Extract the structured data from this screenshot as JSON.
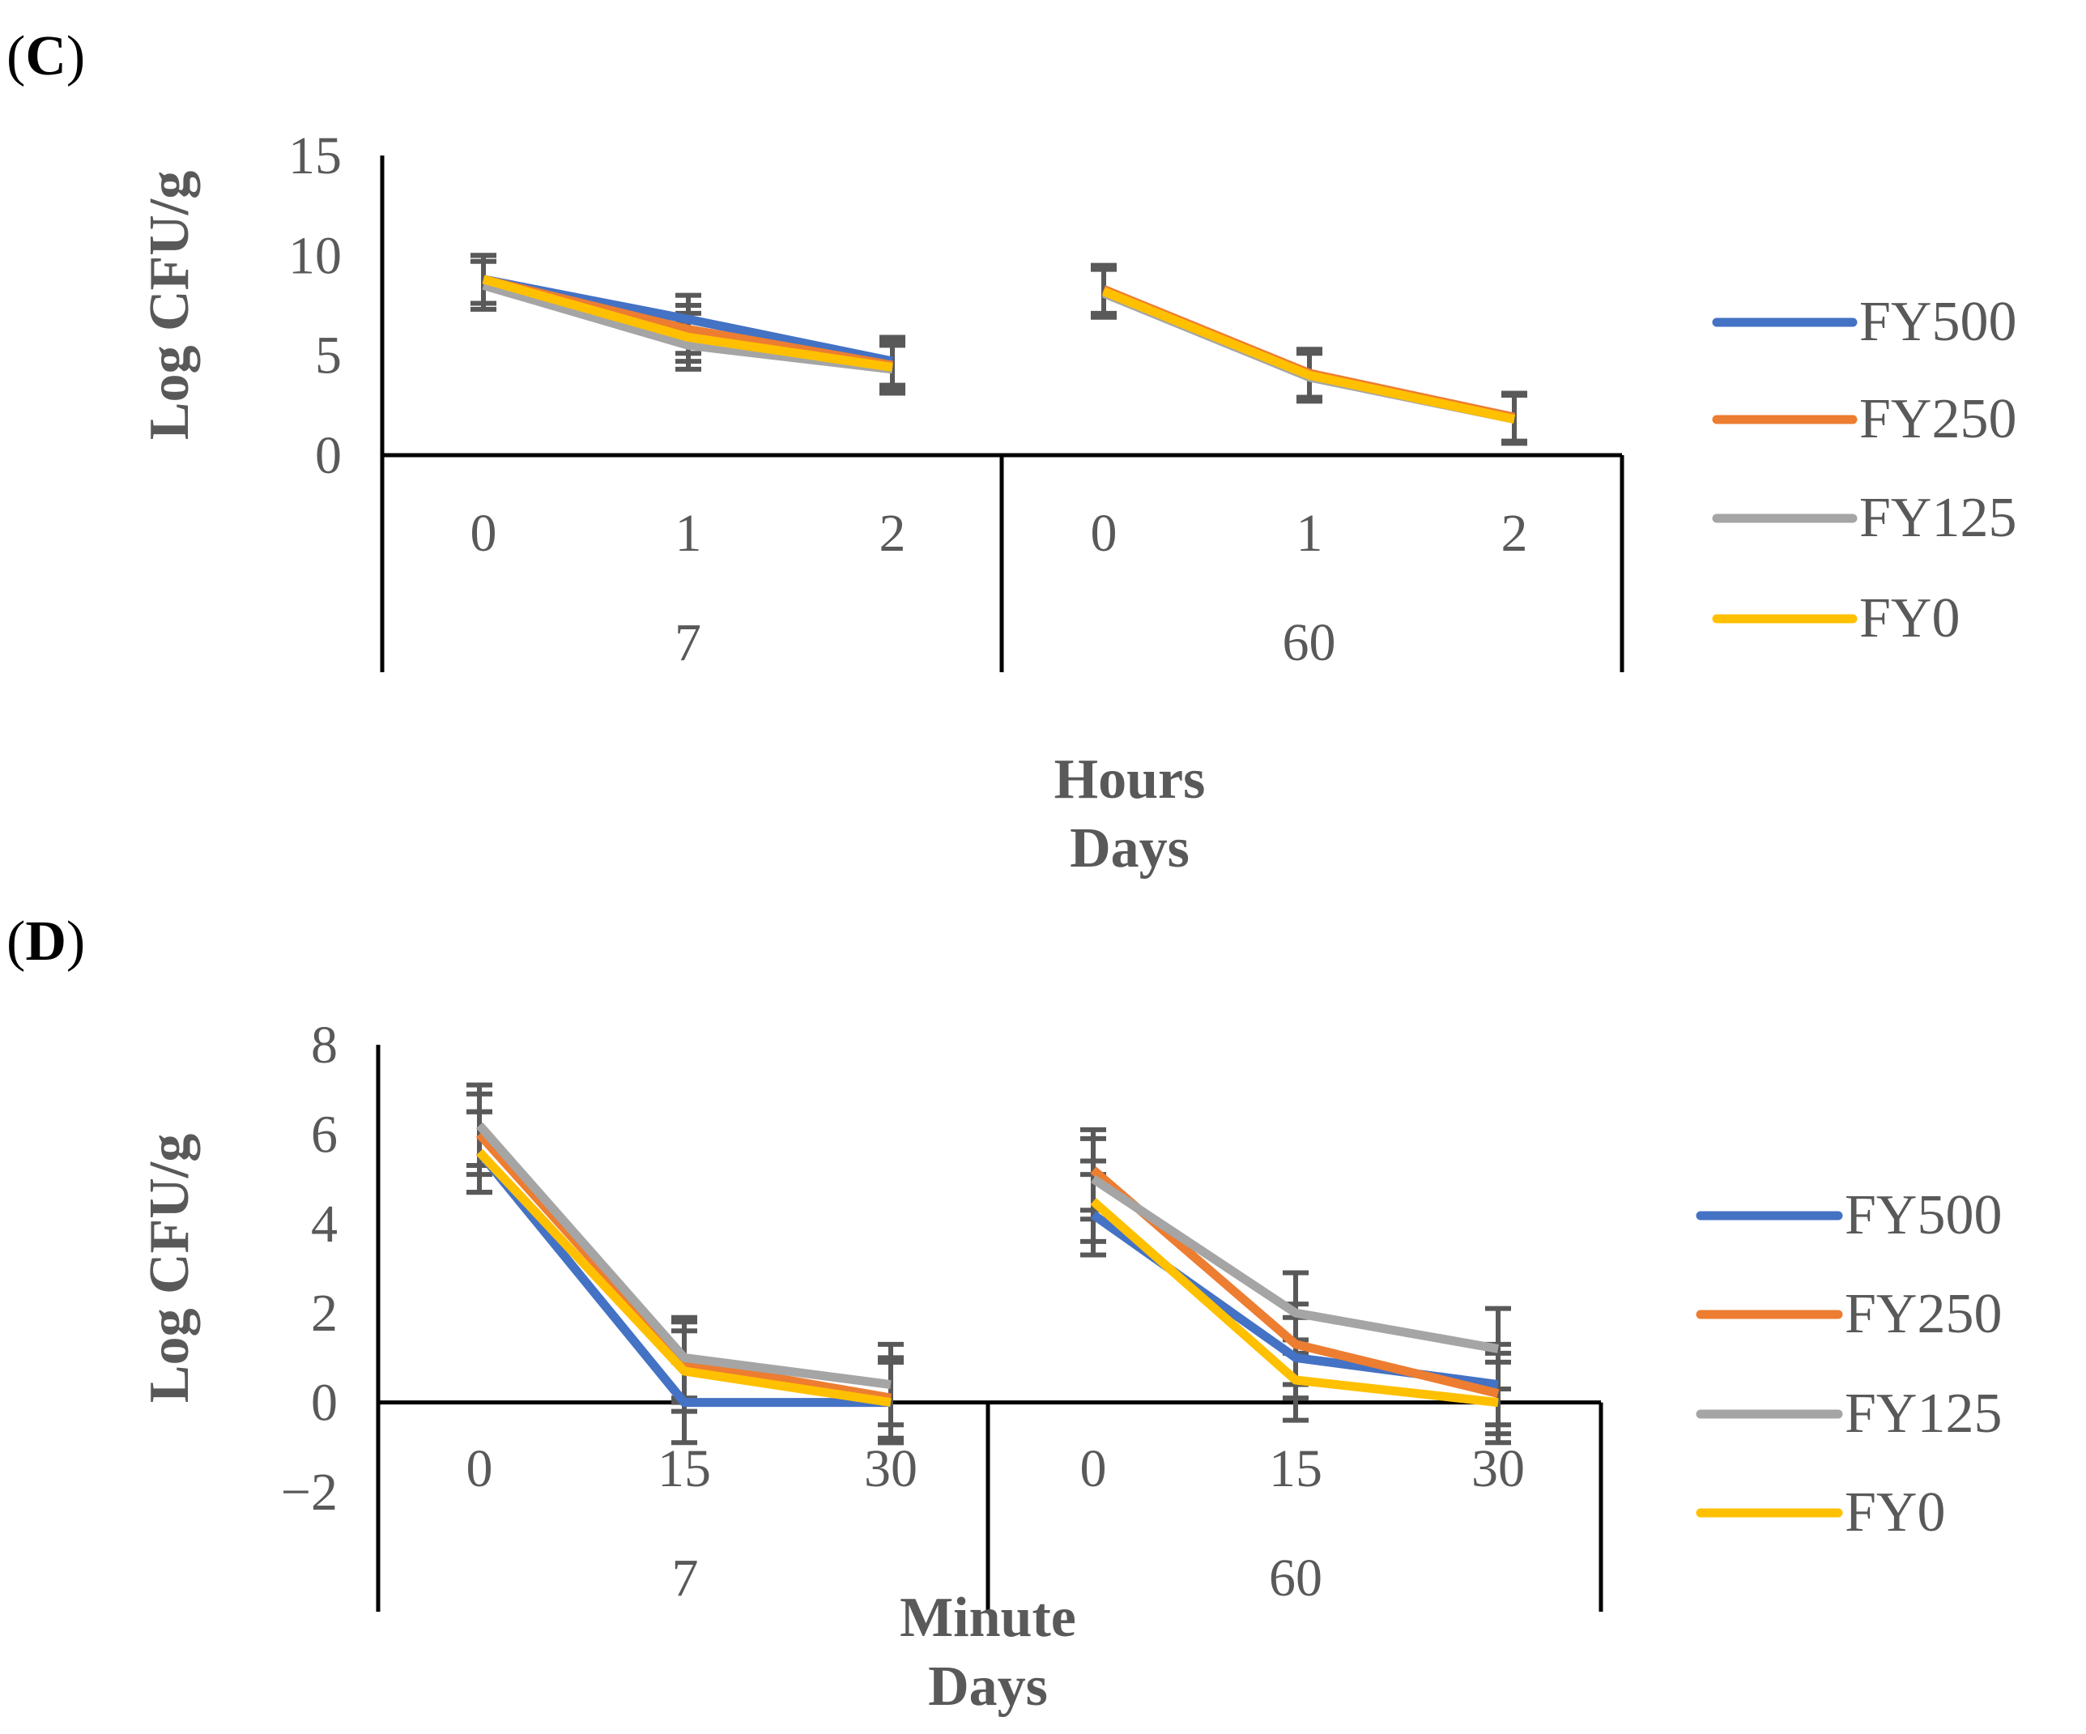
{
  "chart_data": [
    {
      "panel_label": "C",
      "type": "line",
      "ylabel": "Log CFU/g",
      "xlabel": [
        "Hours",
        "Days"
      ],
      "ylim": [
        0,
        15
      ],
      "yticks": [
        0,
        5,
        10,
        15
      ],
      "groups": [
        {
          "label": "7",
          "categories": [
            "0",
            "1",
            "2"
          ]
        },
        {
          "label": "60",
          "categories": [
            "0",
            "1",
            "2"
          ]
        }
      ],
      "series": [
        {
          "name": "FY500",
          "color": "#4472C4",
          "values": [
            [
              8.8,
              6.8,
              4.7
            ],
            [
              8.2,
              4.0,
              1.9
            ]
          ],
          "errors": [
            [
              1.2,
              1.2,
              1.2
            ],
            [
              1.2,
              1.2,
              1.2
            ]
          ]
        },
        {
          "name": "FY250",
          "color": "#ED7D31",
          "values": [
            [
              8.8,
              6.3,
              4.5
            ],
            [
              8.3,
              4.1,
              1.9
            ]
          ],
          "errors": [
            [
              1.2,
              1.2,
              1.2
            ],
            [
              1.2,
              1.2,
              1.2
            ]
          ]
        },
        {
          "name": "FY125",
          "color": "#A5A5A5",
          "values": [
            [
              8.5,
              5.5,
              4.3
            ],
            [
              8.1,
              3.9,
              1.8
            ]
          ],
          "errors": [
            [
              1.2,
              1.2,
              1.2
            ],
            [
              1.2,
              1.2,
              1.2
            ]
          ]
        },
        {
          "name": "FY0",
          "color": "#FFC000",
          "values": [
            [
              8.8,
              5.9,
              4.4
            ],
            [
              8.2,
              4.0,
              1.8
            ]
          ],
          "errors": [
            [
              1.2,
              1.2,
              1.2
            ],
            [
              1.2,
              1.2,
              1.2
            ]
          ]
        }
      ],
      "grid": false,
      "legend": "right"
    },
    {
      "panel_label": "D",
      "type": "line",
      "ylabel": "Log CFU/g",
      "xlabel": [
        "Minute",
        "Days"
      ],
      "ylim": [
        -2,
        8
      ],
      "yticks": [
        -2,
        0,
        2,
        4,
        6,
        8
      ],
      "groups": [
        {
          "label": "7",
          "categories": [
            "0",
            "15",
            "30"
          ]
        },
        {
          "label": "60",
          "categories": [
            "0",
            "15",
            "30"
          ]
        }
      ],
      "series": [
        {
          "name": "FY500",
          "color": "#4472C4",
          "values": [
            [
              5.6,
              0.0,
              0.0
            ],
            [
              4.2,
              1.0,
              0.4
            ]
          ],
          "errors": [
            [
              0.9,
              0.9,
              0.9
            ],
            [
              0.9,
              0.9,
              0.9
            ]
          ]
        },
        {
          "name": "FY250",
          "color": "#ED7D31",
          "values": [
            [
              6.0,
              0.9,
              0.1
            ],
            [
              5.2,
              1.3,
              0.2
            ]
          ],
          "errors": [
            [
              0.9,
              0.9,
              0.9
            ],
            [
              0.9,
              0.9,
              0.9
            ]
          ]
        },
        {
          "name": "FY125",
          "color": "#A5A5A5",
          "values": [
            [
              6.2,
              1.0,
              0.4
            ],
            [
              5.0,
              2.0,
              1.2
            ]
          ],
          "errors": [
            [
              0.9,
              0.9,
              0.9
            ],
            [
              0.9,
              0.9,
              0.9
            ]
          ]
        },
        {
          "name": "FY0",
          "color": "#FFC000",
          "values": [
            [
              5.6,
              0.7,
              0.0
            ],
            [
              4.5,
              0.5,
              0.0
            ]
          ],
          "errors": [
            [
              0.9,
              0.9,
              0.9
            ],
            [
              0.9,
              0.9,
              0.9
            ]
          ]
        }
      ],
      "grid": false,
      "legend": "right"
    }
  ]
}
